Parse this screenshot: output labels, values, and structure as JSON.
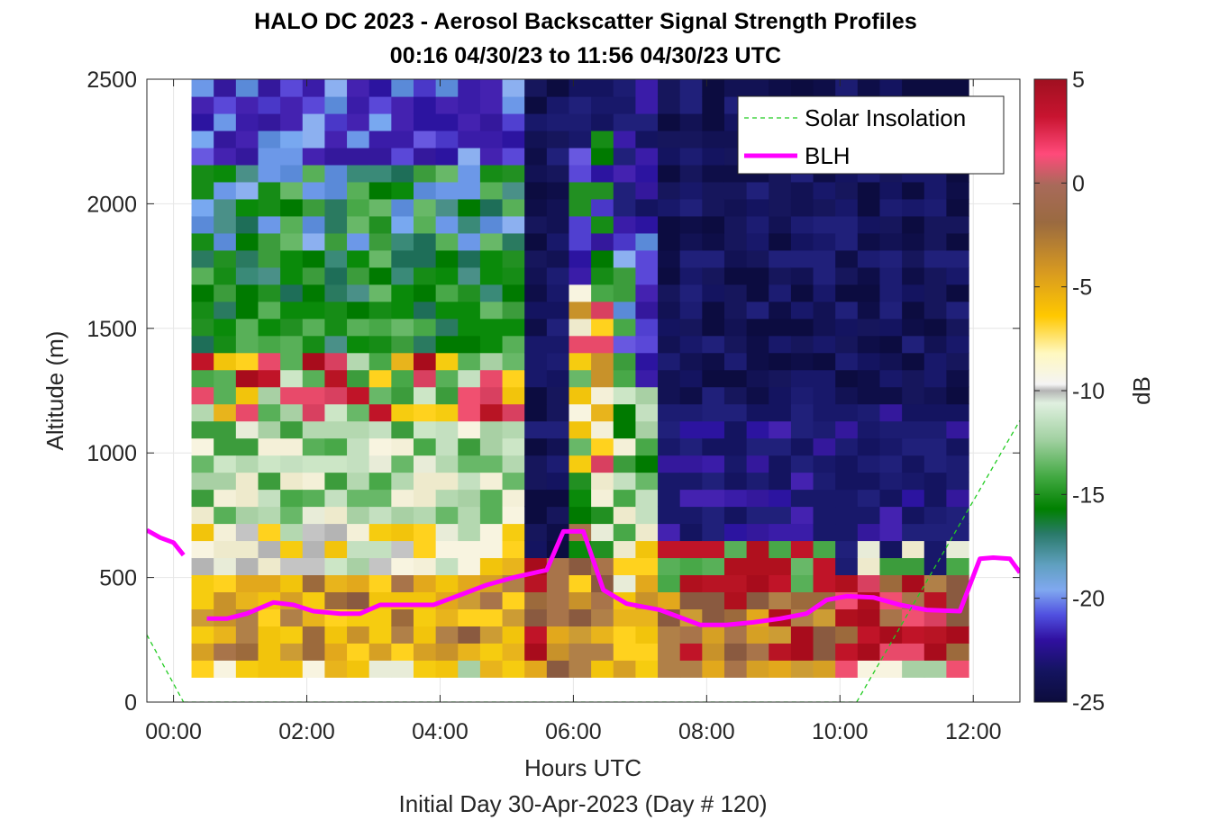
{
  "chart_data": {
    "type": "heatmap",
    "title": "HALO DC 2023 - Aerosol Backscatter Signal Strength Profiles",
    "subtitle": "00:16 04/30/23 to 11:56 04/30/23  UTC",
    "xlabel": "Hours UTC",
    "xlabel2": "Initial Day 30-Apr-2023 (Day # 120)",
    "ylabel": "Altitude (m)",
    "colorbar_label": "dB",
    "xlim": [
      -0.4,
      12.7
    ],
    "ylim": [
      0,
      2500
    ],
    "x_ticks": [
      {
        "value": 0,
        "label": "00:00"
      },
      {
        "value": 2,
        "label": "02:00"
      },
      {
        "value": 4,
        "label": "04:00"
      },
      {
        "value": 6,
        "label": "06:00"
      },
      {
        "value": 8,
        "label": "08:00"
      },
      {
        "value": 10,
        "label": "10:00"
      },
      {
        "value": 12,
        "label": "12:00"
      }
    ],
    "y_ticks": [
      0,
      500,
      1000,
      1500,
      2000,
      2500
    ],
    "y_tick_labels": [
      "0",
      "500",
      "1000",
      "1500",
      "2000",
      "2500"
    ],
    "colorbar": {
      "min": -25,
      "max": 5,
      "ticks": [
        5,
        0,
        -5,
        -10,
        -15,
        -20,
        -25
      ],
      "tick_labels": [
        "5",
        "0",
        "-5",
        "-10",
        "-15",
        "-20",
        "-25"
      ]
    },
    "heatmap_extent": {
      "x_start": 0.27,
      "x_end": 11.93,
      "y_bottom": 100,
      "y_top": 2500
    },
    "grid": true,
    "legend": {
      "position": "top-right",
      "entries": [
        {
          "name": "Solar Insolation",
          "style": "dashed",
          "color": "#22cc22"
        },
        {
          "name": "BLH",
          "style": "solid",
          "color": "#ff00ff"
        }
      ]
    },
    "series": [
      {
        "name": "BLH",
        "color": "#ff00ff",
        "segments": [
          {
            "x": [
              -0.4,
              -0.2,
              0.0,
              0.15
            ],
            "y": [
              690,
              660,
              640,
              590
            ]
          },
          {
            "x": [
              0.5,
              0.8,
              1.1,
              1.5,
              1.8,
              2.1,
              2.5,
              2.8,
              3.1,
              3.5,
              3.9,
              4.3,
              4.7,
              5.1,
              5.6,
              5.85,
              6.15,
              6.45,
              6.8,
              7.3,
              7.6,
              7.9,
              8.3,
              8.7,
              9.1,
              9.5,
              9.8,
              10.1,
              10.5,
              10.9,
              11.3,
              11.8,
              12.1,
              12.3,
              12.55,
              12.7
            ],
            "y": [
              335,
              335,
              355,
              400,
              390,
              365,
              355,
              355,
              390,
              390,
              390,
              430,
              470,
              500,
              530,
              685,
              685,
              450,
              395,
              370,
              340,
              310,
              310,
              320,
              335,
              355,
              410,
              425,
              420,
              390,
              370,
              365,
              575,
              580,
              575,
              520
            ]
          }
        ]
      },
      {
        "name": "Solar Insolation",
        "color": "#22cc22",
        "segments": [
          {
            "x": [
              -0.4,
              0.15
            ],
            "y": [
              270,
              0
            ]
          },
          {
            "x": [
              0.15,
              10.25
            ],
            "y": [
              0,
              0
            ]
          },
          {
            "x": [
              10.25,
              12.7
            ],
            "y": [
              0,
              1130
            ]
          }
        ]
      }
    ]
  }
}
